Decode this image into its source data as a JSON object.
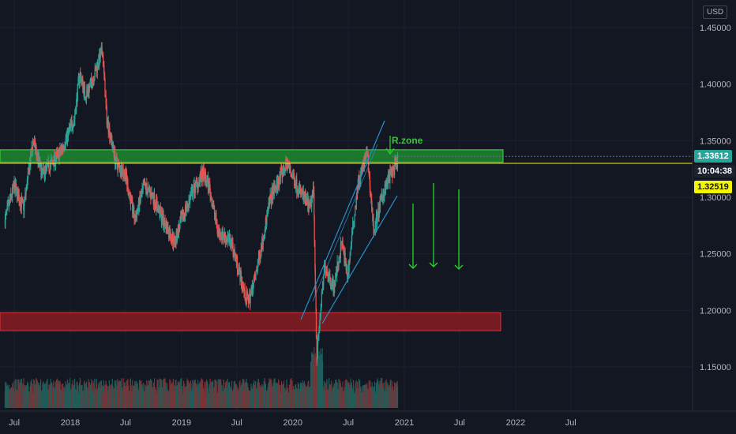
{
  "currency": "USD",
  "price_labels": {
    "current": "1.33612",
    "countdown": "10:04:38",
    "marked": "1.32519"
  },
  "annotation": "R.zone",
  "colors": {
    "up": "#26a69a",
    "down": "#ef5350",
    "zone_green": "#1e8a2f",
    "zone_red": "#8a1c22",
    "arrow": "#29d629",
    "channel": "#2a8fc9",
    "yellow_line": "#f5f50a"
  },
  "chart_data": {
    "type": "candlestick",
    "title": "",
    "xlabel": "",
    "ylabel": "",
    "y_ticks": [
      "1.15000",
      "1.20000",
      "1.25000",
      "1.30000",
      "1.35000",
      "1.40000",
      "1.45000"
    ],
    "x_ticks": [
      "Jul",
      "2018",
      "Jul",
      "2019",
      "Jul",
      "2020",
      "Jul",
      "2021",
      "Jul",
      "2022",
      "Jul"
    ],
    "ylim": [
      1.12,
      1.465
    ],
    "close_path": [
      [
        "2017-06-01",
        1.28
      ],
      [
        "2017-07-01",
        1.31
      ],
      [
        "2017-08-01",
        1.29
      ],
      [
        "2017-09-01",
        1.35
      ],
      [
        "2017-10-01",
        1.32
      ],
      [
        "2017-11-01",
        1.33
      ],
      [
        "2017-12-01",
        1.34
      ],
      [
        "2018-01-15",
        1.37
      ],
      [
        "2018-02-01",
        1.41
      ],
      [
        "2018-02-20",
        1.39
      ],
      [
        "2018-03-10",
        1.4
      ],
      [
        "2018-04-17",
        1.43
      ],
      [
        "2018-05-01",
        1.37
      ],
      [
        "2018-06-01",
        1.33
      ],
      [
        "2018-07-01",
        1.32
      ],
      [
        "2018-08-01",
        1.28
      ],
      [
        "2018-09-01",
        1.31
      ],
      [
        "2018-10-01",
        1.3
      ],
      [
        "2018-11-01",
        1.28
      ],
      [
        "2018-12-10",
        1.26
      ],
      [
        "2019-01-01",
        1.28
      ],
      [
        "2019-02-15",
        1.31
      ],
      [
        "2019-03-13",
        1.32
      ],
      [
        "2019-04-01",
        1.31
      ],
      [
        "2019-05-01",
        1.27
      ],
      [
        "2019-06-15",
        1.26
      ],
      [
        "2019-08-01",
        1.21
      ],
      [
        "2019-08-12",
        1.21
      ],
      [
        "2019-09-01",
        1.23
      ],
      [
        "2019-10-21",
        1.3
      ],
      [
        "2019-12-13",
        1.33
      ],
      [
        "2020-01-15",
        1.31
      ],
      [
        "2020-02-28",
        1.29
      ],
      [
        "2020-03-09",
        1.31
      ],
      [
        "2020-03-20",
        1.16
      ],
      [
        "2020-04-15",
        1.24
      ],
      [
        "2020-05-15",
        1.22
      ],
      [
        "2020-06-10",
        1.26
      ],
      [
        "2020-06-29",
        1.23
      ],
      [
        "2020-08-01",
        1.31
      ],
      [
        "2020-09-01",
        1.34
      ],
      [
        "2020-09-23",
        1.27
      ],
      [
        "2020-10-20",
        1.3
      ],
      [
        "2020-11-15",
        1.32
      ],
      [
        "2020-12-11",
        1.33
      ]
    ],
    "volume": "histogram under candles",
    "zones": [
      {
        "label": "resistance",
        "range": [
          1.331,
          1.342
        ]
      },
      {
        "label": "support",
        "range": [
          1.182,
          1.198
        ]
      }
    ],
    "horizontal_line": 1.33,
    "projected_arrows": 3
  }
}
